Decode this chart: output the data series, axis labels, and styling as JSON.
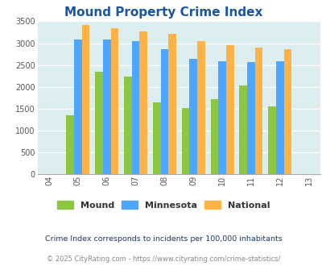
{
  "title": "Mound Property Crime Index",
  "all_years": [
    2004,
    2005,
    2006,
    2007,
    2008,
    2009,
    2010,
    2011,
    2012,
    2013
  ],
  "bar_years": [
    2005,
    2006,
    2007,
    2008,
    2009,
    2010,
    2011,
    2012
  ],
  "mound": [
    1350,
    2350,
    2230,
    1650,
    1510,
    1720,
    2040,
    1560
  ],
  "minnesota": [
    3080,
    3080,
    3040,
    2860,
    2640,
    2580,
    2560,
    2580
  ],
  "national": [
    3420,
    3340,
    3260,
    3210,
    3040,
    2960,
    2900,
    2860
  ],
  "mound_color": "#8dc63f",
  "minnesota_color": "#4da6ff",
  "national_color": "#ffb347",
  "bg_color": "#dceef0",
  "title_color": "#1a56a0",
  "ylabel_max": 3500,
  "yticks": [
    0,
    500,
    1000,
    1500,
    2000,
    2500,
    3000,
    3500
  ],
  "footnote1": "Crime Index corresponds to incidents per 100,000 inhabitants",
  "footnote2": "© 2025 CityRating.com - https://www.cityrating.com/crime-statistics/",
  "legend_labels": [
    "Mound",
    "Minnesota",
    "National"
  ],
  "bar_width": 0.27,
  "tick_labels": [
    "04",
    "05",
    "06",
    "07",
    "08",
    "09",
    "10",
    "11",
    "12",
    "13"
  ]
}
